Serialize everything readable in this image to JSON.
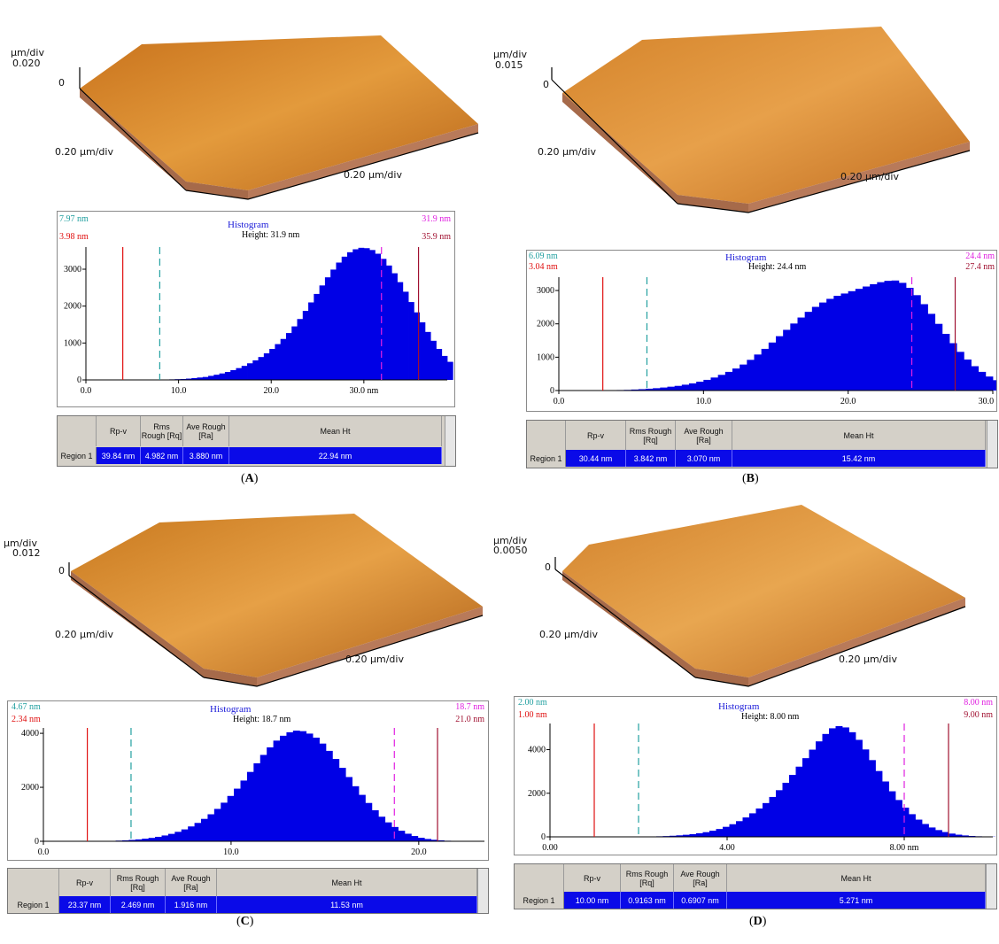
{
  "colors": {
    "bar": "#0000e6",
    "red": "#e01010",
    "teal": "#22a0a0",
    "magenta": "#e020e0",
    "dark_red": "#a01030",
    "legend_blue": "#1a1ad8",
    "surface_mid": "#d98a2a",
    "surface_dark": "#7a3a08",
    "surface_light": "#f4d39a"
  },
  "panels": [
    {
      "label_text": "A",
      "afm": {
        "zlabel": "μm/div",
        "zvalue": "0.020",
        "zzero": "0",
        "xlabel": "0.20 μm/div",
        "ylabel": "0.20 μm/div"
      },
      "hist": {
        "title": "Histogram",
        "height_label": "Height: 31.9 nm",
        "left_teal": "7.97 nm",
        "left_red": "3.98 nm",
        "right_magenta": "31.9 nm",
        "right_darkred": "35.9 nm"
      },
      "table": {
        "col_rpv": "Rp-v",
        "col_rq": "Rms Rough [Rq]",
        "col_ra": "Ave Rough [Ra]",
        "col_mean": "Mean Ht",
        "row": "Region 1",
        "rpv": "39.84 nm",
        "rq": "4.982 nm",
        "ra": "3.880 nm",
        "mean": "22.94 nm"
      }
    },
    {
      "label_text": "B",
      "afm": {
        "zlabel": "μm/div",
        "zvalue": "0.015",
        "zzero": "0",
        "xlabel": "0.20 μm/div",
        "ylabel": "0.20 μm/div"
      },
      "hist": {
        "title": "Histogram",
        "height_label": "Height: 24.4 nm",
        "left_teal": "6.09 nm",
        "left_red": "3.04 nm",
        "right_magenta": "24.4 nm",
        "right_darkred": "27.4 nm"
      },
      "table": {
        "col_rpv": "Rp-v",
        "col_rq": "Rms Rough [Rq]",
        "col_ra": "Ave Rough [Ra]",
        "col_mean": "Mean Ht",
        "row": "Region 1",
        "rpv": "30.44 nm",
        "rq": "3.842 nm",
        "ra": "3.070 nm",
        "mean": "15.42 nm"
      }
    },
    {
      "label_text": "C",
      "afm": {
        "zlabel": "μm/div",
        "zvalue": "0.012",
        "zzero": "0",
        "xlabel": "0.20 μm/div",
        "ylabel": "0.20 μm/div"
      },
      "hist": {
        "title": "Histogram",
        "height_label": "Height: 18.7 nm",
        "left_teal": "4.67 nm",
        "left_red": "2.34 nm",
        "right_magenta": "18.7 nm",
        "right_darkred": "21.0 nm"
      },
      "table": {
        "col_rpv": "Rp-v",
        "col_rq": "Rms Rough [Rq]",
        "col_ra": "Ave Rough [Ra]",
        "col_mean": "Mean Ht",
        "row": "Region 1",
        "rpv": "23.37 nm",
        "rq": "2.469 nm",
        "ra": "1.916 nm",
        "mean": "11.53 nm"
      }
    },
    {
      "label_text": "D",
      "afm": {
        "zlabel": "μm/div",
        "zvalue": "0.0050",
        "zzero": "0",
        "xlabel": "0.20 μm/div",
        "ylabel": "0.20 μm/div"
      },
      "hist": {
        "title": "Histogram",
        "height_label": "Height: 8.00 nm",
        "left_teal": "2.00 nm",
        "left_red": "1.00 nm",
        "right_magenta": "8.00 nm",
        "right_darkred": "9.00 nm"
      },
      "table": {
        "col_rpv": "Rp-v",
        "col_rq": "Rms Rough [Rq]",
        "col_ra": "Ave Rough [Ra]",
        "col_mean": "Mean Ht",
        "row": "Region 1",
        "rpv": "10.00 nm",
        "rq": "0.9163 nm",
        "ra": "0.6907 nm",
        "mean": "5.271 nm"
      }
    }
  ],
  "chart_data": [
    {
      "type": "bar",
      "xlim": [
        0,
        39
      ],
      "xticks": [
        "0.0",
        "10.0",
        "20.0",
        "30.0 nm"
      ],
      "xtick_values": [
        0,
        10,
        20,
        30
      ],
      "ylim": [
        0,
        3600
      ],
      "yticks": [
        "0",
        "1000",
        "2000",
        "3000"
      ],
      "ytick_values": [
        0,
        1000,
        2000,
        3000
      ],
      "lines": {
        "red": 3.98,
        "teal": 7.97,
        "magenta": 31.9,
        "darkred": 35.9
      },
      "bin_width": 0.6,
      "x_start": 0,
      "values": [
        0,
        0,
        0,
        0,
        0,
        0,
        0,
        0,
        0,
        0,
        5,
        5,
        5,
        10,
        10,
        15,
        20,
        25,
        35,
        50,
        65,
        80,
        110,
        140,
        175,
        215,
        265,
        320,
        380,
        450,
        530,
        620,
        720,
        840,
        970,
        1110,
        1270,
        1450,
        1650,
        1870,
        2100,
        2330,
        2560,
        2780,
        2990,
        3180,
        3340,
        3460,
        3540,
        3580,
        3570,
        3520,
        3420,
        3280,
        3100,
        2890,
        2650,
        2390,
        2110,
        1830,
        1560,
        1300,
        1060,
        840,
        650,
        490,
        360,
        260,
        180,
        120,
        80,
        55,
        35,
        20,
        12,
        8,
        5,
        3,
        2,
        1,
        0
      ]
    },
    {
      "type": "bar",
      "xlim": [
        0,
        30
      ],
      "xticks": [
        "0.0",
        "10.0",
        "20.0",
        "30.0 nm"
      ],
      "xtick_values": [
        0,
        10,
        20,
        30
      ],
      "ylim": [
        0,
        3400
      ],
      "yticks": [
        "0",
        "1000",
        "2000",
        "3000"
      ],
      "ytick_values": [
        0,
        1000,
        2000,
        3000
      ],
      "lines": {
        "red": 3.04,
        "teal": 6.09,
        "magenta": 24.4,
        "darkred": 27.4
      },
      "bin_width": 0.5,
      "x_start": 0,
      "values": [
        0,
        0,
        0,
        0,
        0,
        0,
        5,
        10,
        15,
        20,
        30,
        40,
        55,
        70,
        90,
        115,
        140,
        175,
        215,
        265,
        320,
        390,
        470,
        560,
        660,
        780,
        920,
        1080,
        1250,
        1440,
        1630,
        1820,
        2010,
        2190,
        2360,
        2510,
        2640,
        2750,
        2840,
        2910,
        2980,
        3050,
        3120,
        3190,
        3250,
        3290,
        3300,
        3230,
        3080,
        2860,
        2590,
        2300,
        2000,
        1700,
        1420,
        1160,
        930,
        730,
        560,
        420,
        310,
        220,
        150,
        100,
        65,
        40,
        25,
        15,
        10,
        5,
        3,
        2,
        1,
        0
      ]
    },
    {
      "type": "bar",
      "xlim": [
        0,
        23.5
      ],
      "xticks": [
        "0.0",
        "10.0",
        "20.0"
      ],
      "xtick_values": [
        0,
        10,
        20
      ],
      "ylim": [
        0,
        4200
      ],
      "yticks": [
        "0",
        "2000",
        "4000"
      ],
      "ytick_values": [
        0,
        2000,
        4000
      ],
      "lines": {
        "red": 2.34,
        "teal": 4.67,
        "magenta": 18.7,
        "darkred": 21.0
      },
      "bin_width": 0.35,
      "x_start": 0,
      "values": [
        0,
        0,
        0,
        0,
        0,
        0,
        0,
        0,
        5,
        10,
        15,
        25,
        35,
        50,
        70,
        95,
        125,
        165,
        215,
        275,
        350,
        440,
        550,
        680,
        830,
        1000,
        1200,
        1430,
        1680,
        1950,
        2250,
        2570,
        2890,
        3200,
        3480,
        3730,
        3910,
        4040,
        4100,
        4080,
        3990,
        3840,
        3620,
        3350,
        3050,
        2720,
        2380,
        2040,
        1720,
        1420,
        1150,
        910,
        700,
        530,
        390,
        280,
        195,
        130,
        85,
        55,
        35,
        20,
        12,
        7,
        4,
        2,
        1,
        0
      ]
    },
    {
      "type": "bar",
      "xlim": [
        0,
        10
      ],
      "xticks": [
        "0.00",
        "4.00",
        "8.00 nm"
      ],
      "xtick_values": [
        0,
        4,
        8
      ],
      "ylim": [
        0,
        5200
      ],
      "yticks": [
        "0",
        "2000",
        "4000"
      ],
      "ytick_values": [
        0,
        2000,
        4000
      ],
      "lines": {
        "red": 1.0,
        "teal": 2.0,
        "magenta": 8.0,
        "darkred": 9.0
      },
      "bin_width": 0.15,
      "x_start": 0,
      "values": [
        0,
        0,
        0,
        0,
        0,
        0,
        0,
        0,
        0,
        0,
        0,
        0,
        0,
        5,
        10,
        15,
        25,
        35,
        50,
        70,
        95,
        125,
        165,
        215,
        280,
        360,
        460,
        580,
        720,
        890,
        1080,
        1300,
        1550,
        1830,
        2140,
        2480,
        2840,
        3220,
        3610,
        4000,
        4380,
        4720,
        4980,
        5080,
        5020,
        4800,
        4450,
        4010,
        3520,
        3020,
        2540,
        2090,
        1690,
        1340,
        1040,
        790,
        590,
        430,
        310,
        220,
        150,
        100,
        65,
        40,
        25,
        15,
        10,
        5,
        3,
        1,
        0
      ]
    }
  ]
}
